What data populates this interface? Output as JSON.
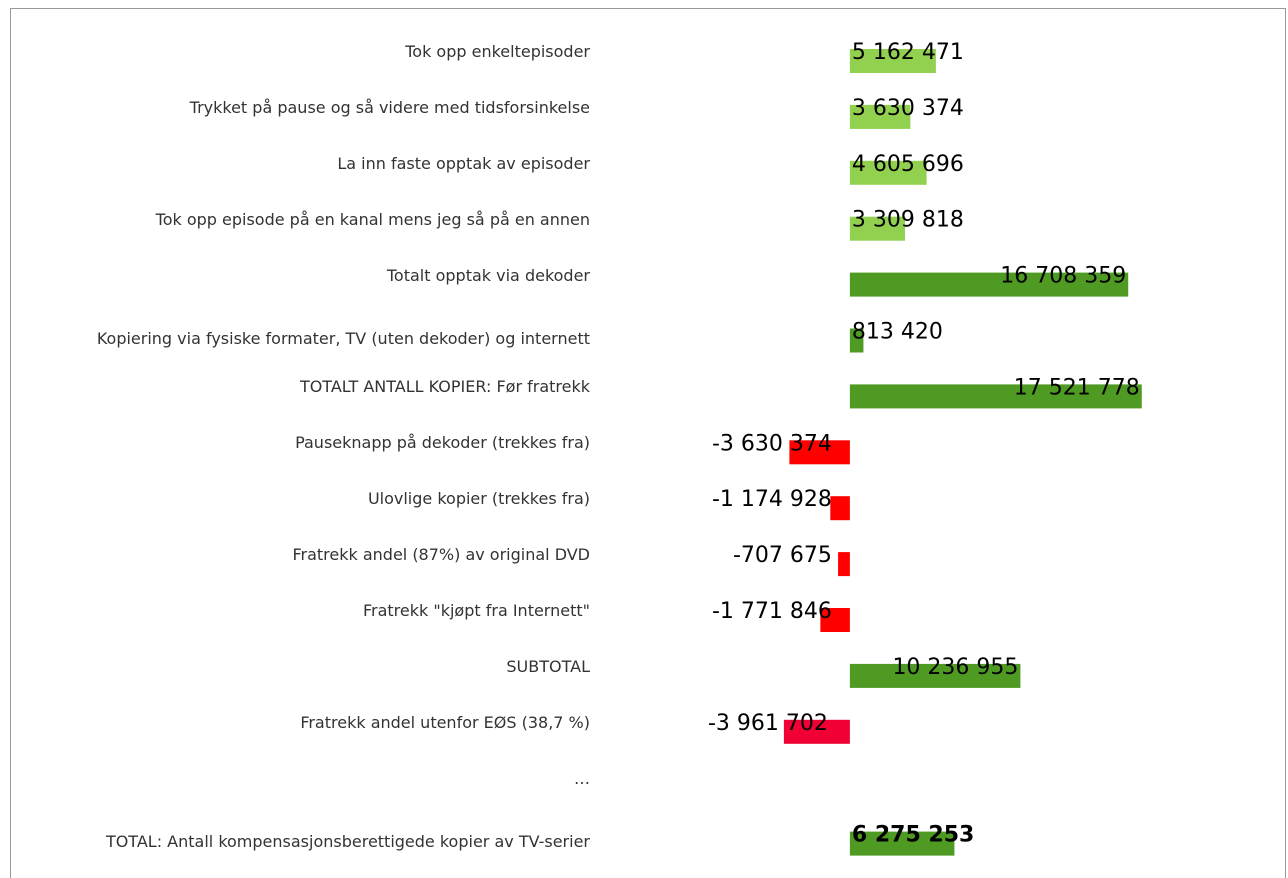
{
  "chart_data": {
    "type": "bar",
    "orientation": "horizontal",
    "categories": [
      "Tok opp enkeltepisoder",
      "Trykket på pause og så videre med tidsforsinkelse",
      "La inn faste opptak av episoder",
      "Tok opp episode på en kanal mens jeg så på en annen",
      "Totalt opptak via dekoder",
      "Kopiering via fysiske formater, TV (uten dekoder) og internett",
      "TOTALT ANTALL KOPIER: Før fratrekk",
      "Pauseknapp på dekoder (trekkes fra)",
      "Ulovlige kopier (trekkes fra)",
      "Fratrekk andel (87%) av original DVD",
      "Fratrekk \"kjøpt fra Internett\"",
      "SUBTOTAL",
      "Fratrekk andel utenfor EØS (38,7 %)",
      "…",
      "TOTAL: Antall kompensasjonsberettigede kopier av TV-serier"
    ],
    "values": [
      5162471,
      3630374,
      4605696,
      3309818,
      16708359,
      813420,
      17521778,
      -3630374,
      -1174928,
      -707675,
      -1771846,
      10236955,
      -3961702,
      null,
      6275253
    ],
    "value_labels": [
      "5 162 471",
      "3 630 374",
      "4 605 696",
      "3 309 818",
      "16 708 359",
      "813 420",
      "17 521 778",
      "-3 630 374",
      "-1 174 928",
      "-707 675",
      "-1 771 846",
      "10 236 955",
      "-3 961 702",
      null,
      "6 275 253"
    ],
    "colors": [
      "#92d050",
      "#92d050",
      "#92d050",
      "#92d050",
      "#4e9a22",
      "#4e9a22",
      "#4e9a22",
      "#ff0000",
      "#ff0000",
      "#ff0000",
      "#ff0000",
      "#4e9a22",
      "#f00034",
      null,
      "#4e9a22"
    ],
    "xlim": [
      -15000000,
      26000000
    ]
  }
}
